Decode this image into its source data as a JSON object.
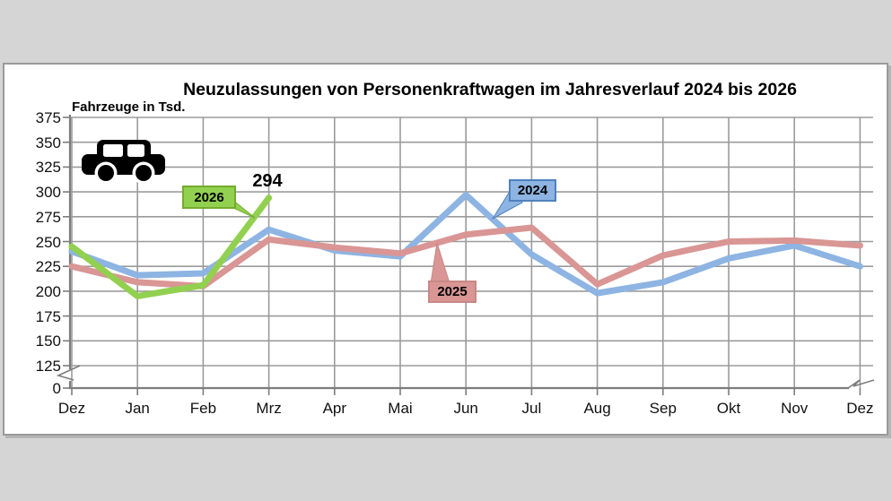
{
  "page": {
    "background_color": "#d5d5d5",
    "chart_box_background": "#ffffff"
  },
  "chart_data": {
    "type": "line",
    "title": "Neuzulassungen von Personenkraftwagen im Jahresverlauf 2024 bis 2026",
    "ylabel": "Fahrzeuge in Tsd.",
    "xlabel": "",
    "categories": [
      "Dez",
      "Jan",
      "Feb",
      "Mrz",
      "Apr",
      "Mai",
      "Jun",
      "Jul",
      "Aug",
      "Sep",
      "Okt",
      "Nov",
      "Dez"
    ],
    "yticks": [
      0,
      125,
      150,
      175,
      200,
      225,
      250,
      275,
      300,
      325,
      350,
      375
    ],
    "axis_break_between": [
      0,
      125
    ],
    "grid": true,
    "legend_position": "labels attached to lines",
    "series": [
      {
        "name": "2024",
        "color": "#8db4e2",
        "label_border": "#4f81bd",
        "values": [
          240,
          216,
          218,
          262,
          241,
          235,
          297,
          237,
          198,
          209,
          233,
          246,
          225
        ]
      },
      {
        "name": "2025",
        "color": "#d99694",
        "label_border": "#c88885",
        "values": [
          225,
          209,
          205,
          252,
          244,
          238,
          257,
          264,
          207,
          236,
          250,
          251,
          246
        ]
      },
      {
        "name": "2026",
        "color": "#92d050",
        "label_border": "#74ab2d",
        "values": [
          245,
          195,
          206,
          294,
          null,
          null,
          null,
          null,
          null,
          null,
          null,
          null,
          null
        ]
      }
    ],
    "annotations": [
      {
        "text": "294",
        "series": "2026",
        "month": "Mrz",
        "value": 294
      }
    ],
    "icons": [
      {
        "name": "car-icon",
        "color": "#000000"
      }
    ]
  }
}
